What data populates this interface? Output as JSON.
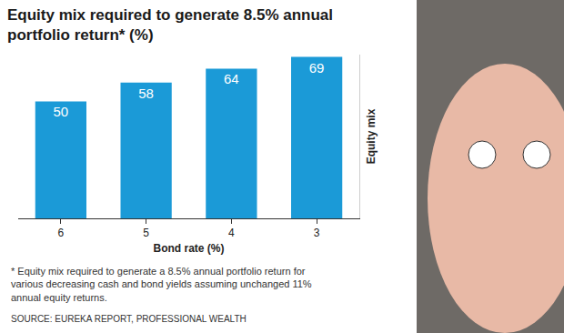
{
  "chart_data": {
    "type": "bar",
    "title": "Equity mix required to generate 8.5% annual portfolio return* (%)",
    "categories": [
      "6",
      "5",
      "4",
      "3"
    ],
    "values": [
      50,
      58,
      64,
      69
    ],
    "color": "#1b9ad7",
    "x_label": "Bond rate (%)",
    "y_label": "Equity mix",
    "ylim": [
      0,
      70
    ],
    "grid": false,
    "data_labels": true,
    "tick_labels": "x",
    "note": "* Equity mix required to generate a 8.5% annual portfolio return for various decreasing cash and bond yields assuming unchanged 11% annual equity returns.",
    "source": "SOURCE: EUREKA REPORT, PROFESSIONAL WEALTH"
  }
}
